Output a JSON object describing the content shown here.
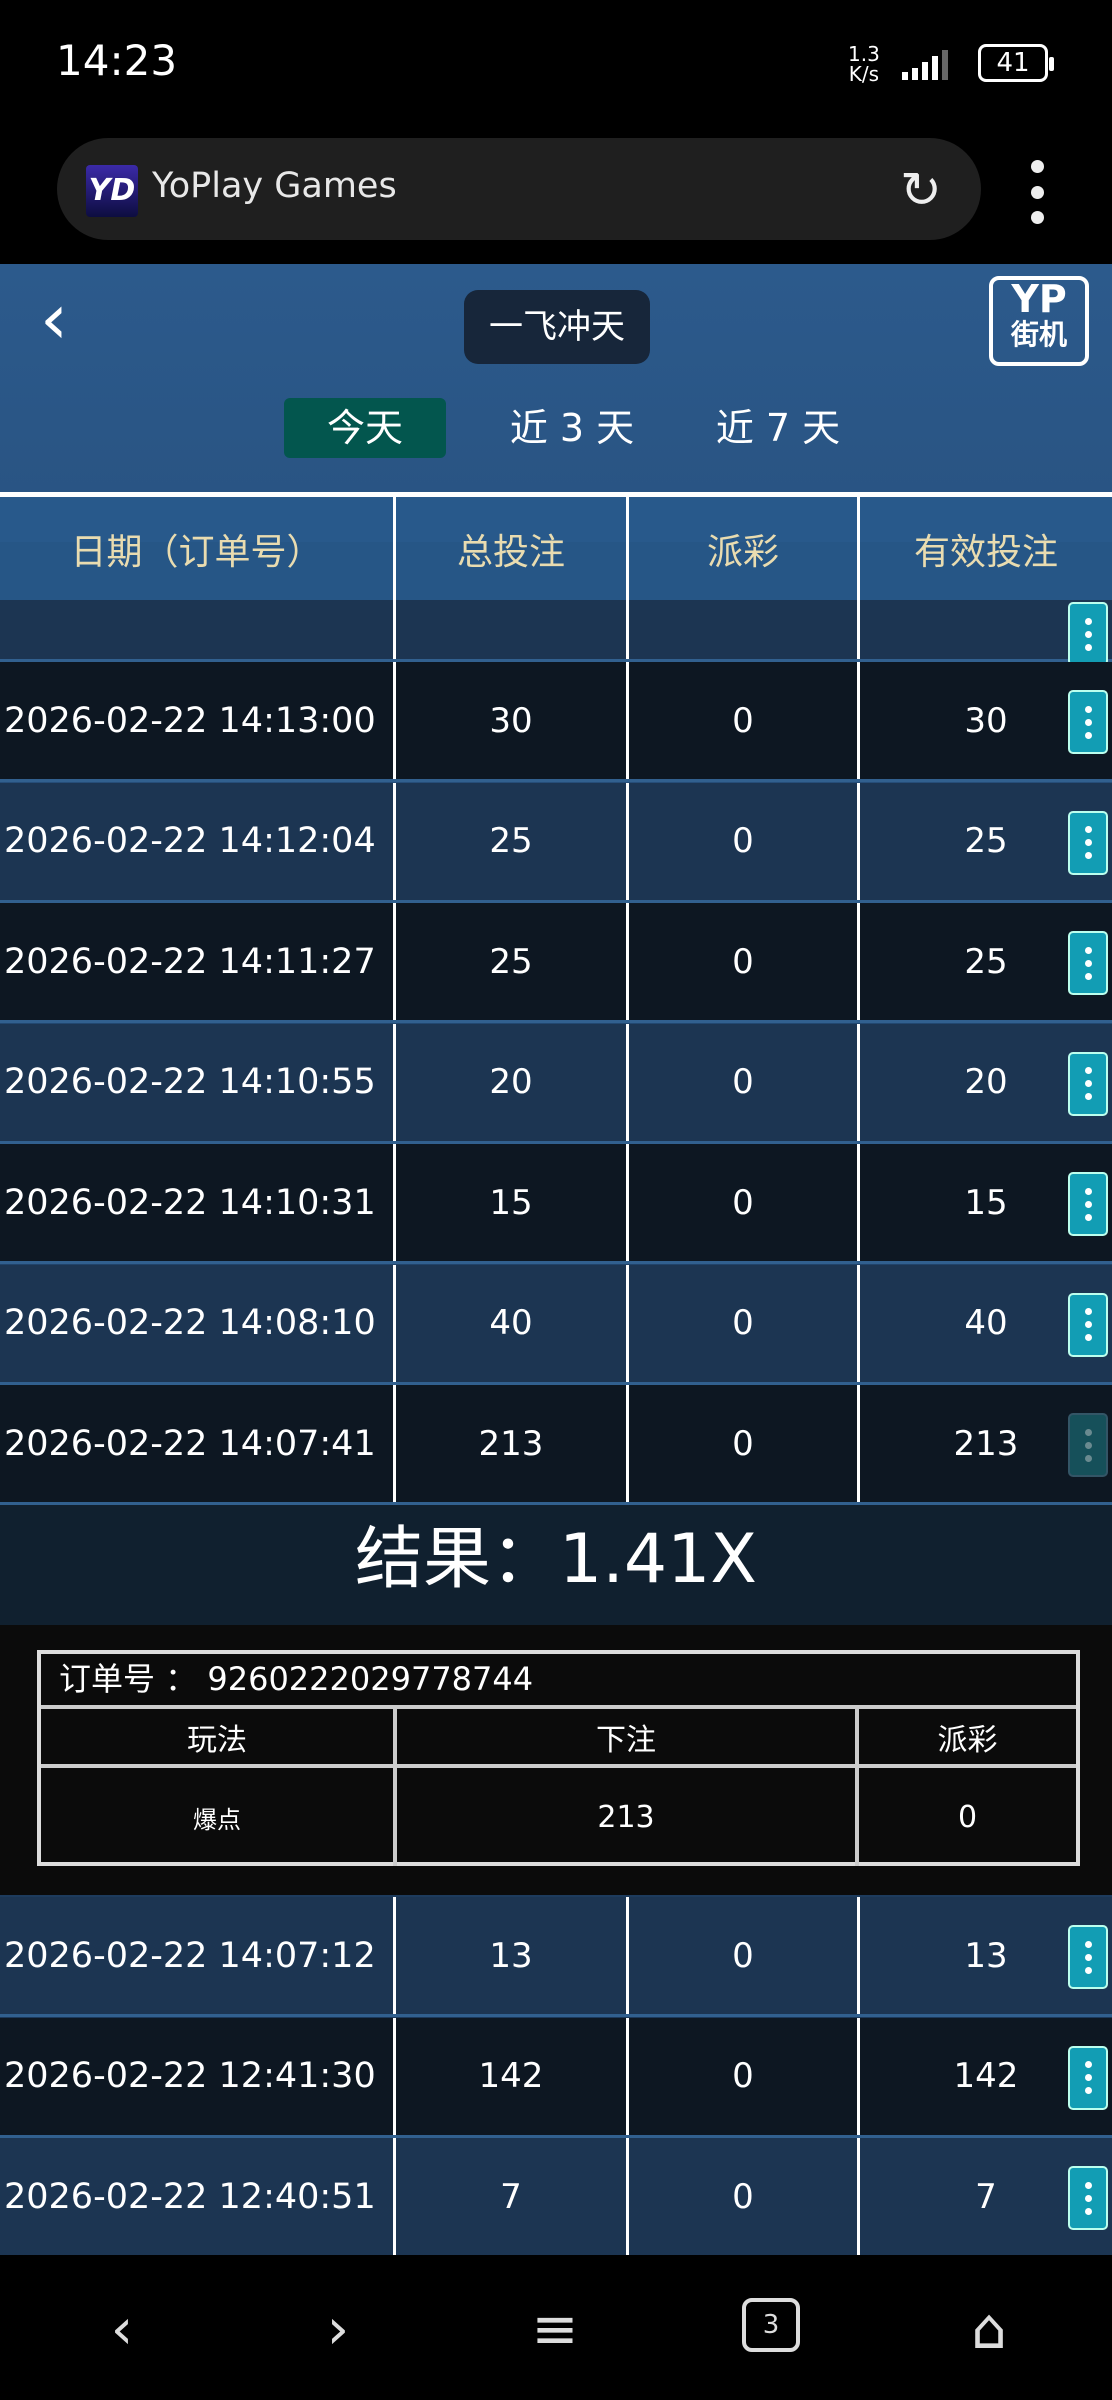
{
  "status": {
    "time": "14:23",
    "speed_value": "1.3",
    "speed_unit": "K/s",
    "battery": "41"
  },
  "browser": {
    "site_title": "YoPlay Games",
    "favicon": "YD",
    "reload_icon": "reload-icon",
    "menu_icon": "kebab-icon"
  },
  "header": {
    "title": "一飞冲天",
    "logo_top": "YP",
    "logo_bottom": "街机"
  },
  "tabs": [
    {
      "label": "今天",
      "active": true
    },
    {
      "label": "近 3 天"
    },
    {
      "label": "近 7 天"
    }
  ],
  "table": {
    "columns": [
      "日期（订单号）",
      "总投注",
      "派彩",
      "有效投注"
    ],
    "rows_before": [
      {
        "date": "2026-02-22 14:13:00",
        "bet": "30",
        "payout": "0",
        "valid": "30"
      },
      {
        "date": "2026-02-22 14:12:04",
        "bet": "25",
        "payout": "0",
        "valid": "25"
      },
      {
        "date": "2026-02-22 14:11:27",
        "bet": "25",
        "payout": "0",
        "valid": "25"
      },
      {
        "date": "2026-02-22 14:10:55",
        "bet": "20",
        "payout": "0",
        "valid": "20"
      },
      {
        "date": "2026-02-22 14:10:31",
        "bet": "15",
        "payout": "0",
        "valid": "15"
      },
      {
        "date": "2026-02-22 14:08:10",
        "bet": "40",
        "payout": "0",
        "valid": "40"
      },
      {
        "date": "2026-02-22 14:07:41",
        "bet": "213",
        "payout": "0",
        "valid": "213"
      }
    ],
    "rows_after": [
      {
        "date": "2026-02-22 14:07:12",
        "bet": "13",
        "payout": "0",
        "valid": "13"
      },
      {
        "date": "2026-02-22 12:41:30",
        "bet": "142",
        "payout": "0",
        "valid": "142"
      },
      {
        "date": "2026-02-22 12:40:51",
        "bet": "7",
        "payout": "0",
        "valid": "7"
      }
    ]
  },
  "detail": {
    "result": "结果：1.41X",
    "order_label": "订单号 ：",
    "order_no": "9260222029778744",
    "columns": [
      "玩法",
      "下注",
      "派彩"
    ],
    "row": {
      "play": "爆点",
      "bet": "213",
      "payout": "0"
    }
  },
  "colors": {
    "accent": "#129db4",
    "tab_active": "#03564e",
    "header_text": "#e9dcb0"
  }
}
